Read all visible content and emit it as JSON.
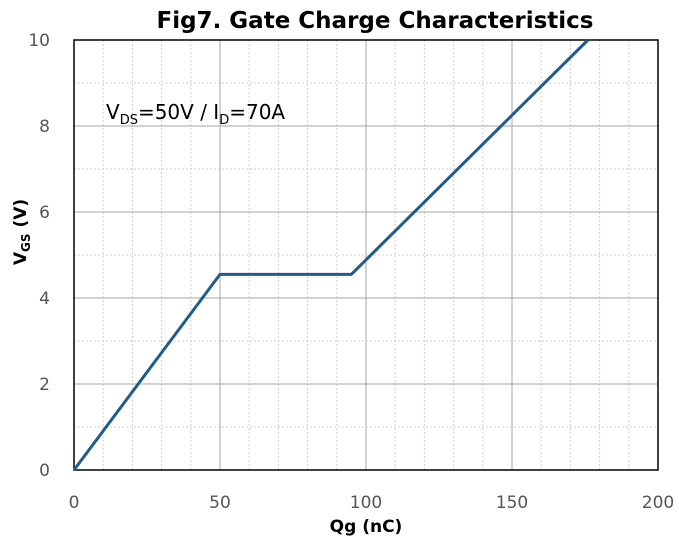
{
  "chart_data": {
    "type": "line",
    "title": "Fig7. Gate Charge Characteristics",
    "xlabel": "Qg (nC)",
    "ylabel_main": "V",
    "ylabel_sub": "GS",
    "ylabel_unit": " (V)",
    "xlim": [
      0,
      200
    ],
    "ylim": [
      0,
      10
    ],
    "x_ticks": [
      "0",
      "50",
      "100",
      "150",
      "200"
    ],
    "y_ticks": [
      "0",
      "2",
      "4",
      "6",
      "8",
      "10"
    ],
    "grid": true,
    "annotation": {
      "v": "V",
      "ds": "DS",
      "mid": "=50V / I",
      "d": "D",
      "end": "=70A"
    },
    "series": [
      {
        "color": "#1f5c8b",
        "x": [
          0,
          50,
          95,
          176
        ],
        "y": [
          0,
          4.55,
          4.55,
          10
        ]
      }
    ]
  }
}
